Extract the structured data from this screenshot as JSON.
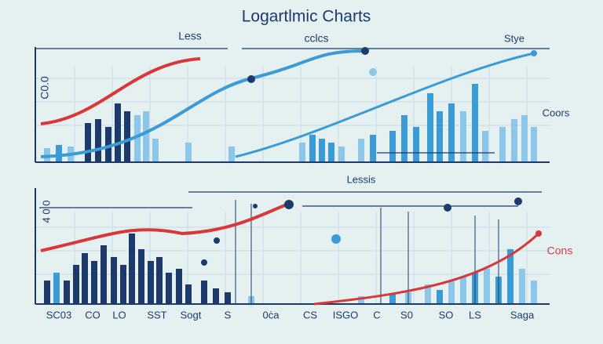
{
  "header": {
    "title": "Logartlmic Charts"
  },
  "top_panel": {
    "labels": [
      "Less",
      "cclcs",
      "Stye",
      "Coors"
    ],
    "axis_label": "C0.0"
  },
  "bottom_panel": {
    "labels": [
      "Lessis",
      "Cons"
    ],
    "axis_label": "4 0 0",
    "x_labels": [
      "SC03",
      "CO",
      "LO",
      "SST",
      "Sogt",
      "S",
      "0ċa",
      "CS",
      "ISGO",
      "C",
      "S0",
      "SO",
      "LS",
      "Saga"
    ]
  }
}
